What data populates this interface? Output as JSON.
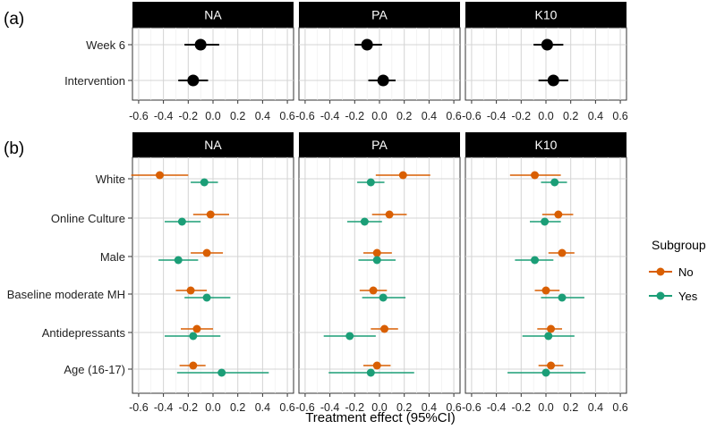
{
  "panel_labels": [
    "(a)",
    "(b)"
  ],
  "facets": [
    "NA",
    "PA",
    "K10"
  ],
  "x_ticks": [
    "-0.6",
    "-0.4",
    "-0.2",
    "0.0",
    "0.2",
    "0.4",
    "0.6"
  ],
  "xlabel": "Treatment effect (95%CI)",
  "legend": {
    "title": "Subgroup",
    "items": [
      {
        "label": "No",
        "color": "#d95f02"
      },
      {
        "label": "Yes",
        "color": "#1b9e77"
      }
    ]
  },
  "colors": {
    "overall": "#000000",
    "strip": "#000000",
    "grid": "#d9d9d9"
  },
  "chart_data": [
    {
      "type": "scatter",
      "panel": "(a)",
      "facets": [
        "NA",
        "PA",
        "K10"
      ],
      "categories": [
        "Week 6",
        "Intervention"
      ],
      "xlim": [
        -0.65,
        0.65
      ],
      "series": [
        {
          "points": [
            [
              {
                "est": -0.1,
                "lo": -0.23,
                "hi": 0.05
              },
              {
                "est": -0.1,
                "lo": -0.2,
                "hi": 0.02
              },
              {
                "est": 0.01,
                "lo": -0.1,
                "hi": 0.14
              }
            ],
            [
              {
                "est": -0.16,
                "lo": -0.28,
                "hi": -0.04
              },
              {
                "est": 0.03,
                "lo": -0.09,
                "hi": 0.13
              },
              {
                "est": 0.06,
                "lo": -0.06,
                "hi": 0.18
              }
            ]
          ]
        }
      ]
    },
    {
      "type": "scatter",
      "panel": "(b)",
      "facets": [
        "NA",
        "PA",
        "K10"
      ],
      "categories": [
        "White",
        "Online Culture",
        "Male",
        "Baseline moderate MH",
        "Antidepressants",
        "Age (16-17)"
      ],
      "xlim": [
        -0.65,
        0.65
      ],
      "series": [
        {
          "name": "No",
          "points": [
            [
              {
                "est": -0.43,
                "lo": -0.66,
                "hi": -0.2
              },
              {
                "est": 0.19,
                "lo": -0.03,
                "hi": 0.41
              },
              {
                "est": -0.09,
                "lo": -0.29,
                "hi": 0.12
              }
            ],
            [
              {
                "est": -0.02,
                "lo": -0.16,
                "hi": 0.13
              },
              {
                "est": 0.08,
                "lo": -0.06,
                "hi": 0.22
              },
              {
                "est": 0.1,
                "lo": -0.03,
                "hi": 0.22
              }
            ],
            [
              {
                "est": -0.05,
                "lo": -0.18,
                "hi": 0.08
              },
              {
                "est": -0.02,
                "lo": -0.13,
                "hi": 0.1
              },
              {
                "est": 0.13,
                "lo": 0.02,
                "hi": 0.23
              }
            ],
            [
              {
                "est": -0.18,
                "lo": -0.3,
                "hi": -0.05
              },
              {
                "est": -0.05,
                "lo": -0.16,
                "hi": 0.06
              },
              {
                "est": 0.0,
                "lo": -0.09,
                "hi": 0.11
              }
            ],
            [
              {
                "est": -0.13,
                "lo": -0.26,
                "hi": 0.0
              },
              {
                "est": 0.04,
                "lo": -0.07,
                "hi": 0.15
              },
              {
                "est": 0.04,
                "lo": -0.07,
                "hi": 0.13
              }
            ],
            [
              {
                "est": -0.16,
                "lo": -0.27,
                "hi": -0.06
              },
              {
                "est": -0.02,
                "lo": -0.13,
                "hi": 0.09
              },
              {
                "est": 0.04,
                "lo": -0.06,
                "hi": 0.14
              }
            ]
          ]
        },
        {
          "name": "Yes",
          "points": [
            [
              {
                "est": -0.07,
                "lo": -0.18,
                "hi": 0.04
              },
              {
                "est": -0.07,
                "lo": -0.18,
                "hi": 0.04
              },
              {
                "est": 0.07,
                "lo": -0.04,
                "hi": 0.17
              }
            ],
            [
              {
                "est": -0.25,
                "lo": -0.39,
                "hi": -0.1
              },
              {
                "est": -0.12,
                "lo": -0.26,
                "hi": 0.02
              },
              {
                "est": -0.01,
                "lo": -0.13,
                "hi": 0.12
              }
            ],
            [
              {
                "est": -0.28,
                "lo": -0.44,
                "hi": -0.12
              },
              {
                "est": -0.02,
                "lo": -0.17,
                "hi": 0.13
              },
              {
                "est": -0.09,
                "lo": -0.25,
                "hi": 0.06
              }
            ],
            [
              {
                "est": -0.05,
                "lo": -0.23,
                "hi": 0.14
              },
              {
                "est": 0.03,
                "lo": -0.14,
                "hi": 0.21
              },
              {
                "est": 0.13,
                "lo": -0.04,
                "hi": 0.31
              }
            ],
            [
              {
                "est": -0.16,
                "lo": -0.39,
                "hi": 0.06
              },
              {
                "est": -0.24,
                "lo": -0.45,
                "hi": -0.03
              },
              {
                "est": 0.02,
                "lo": -0.19,
                "hi": 0.23
              }
            ],
            [
              {
                "est": 0.07,
                "lo": -0.29,
                "hi": 0.45
              },
              {
                "est": -0.07,
                "lo": -0.41,
                "hi": 0.28
              },
              {
                "est": 0.0,
                "lo": -0.31,
                "hi": 0.32
              }
            ]
          ]
        }
      ]
    }
  ]
}
